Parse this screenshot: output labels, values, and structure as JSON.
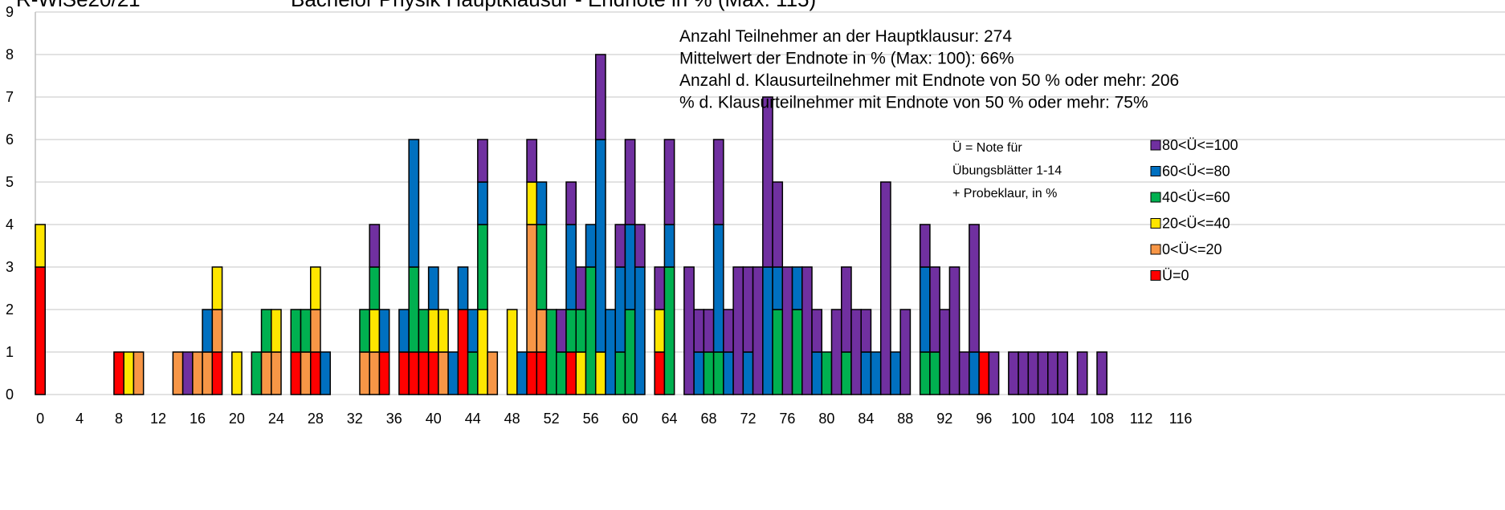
{
  "chart_data": {
    "type": "stacked_bar",
    "title": "Bachelor Physik Hauptklausur - Endnote in % (Max: 115)",
    "subtitle": "R-WiSe20/21",
    "annotations": [
      "Anzahl Teilnehmer an der Hauptklausur: 274",
      "Mittelwert der Endnote in % (Max: 100):  66%",
      "Anzahl d. Klausurteilnehmer mit Endnote von 50 % oder mehr: 206",
      "% d. Klausurteilnehmer mit Endnote von 50 % oder mehr: 75%"
    ],
    "legend_note": [
      "Ü = Note für",
      "Übungsblätter 1-14",
      "+ Probeklaur,  in %"
    ],
    "x": [
      0,
      8,
      9,
      10,
      14,
      15,
      16,
      17,
      18,
      20,
      22,
      23,
      24,
      26,
      27,
      28,
      29,
      33,
      34,
      35,
      37,
      38,
      39,
      40,
      41,
      42,
      43,
      44,
      45,
      46,
      48,
      49,
      50,
      51,
      52,
      53,
      54,
      55,
      56,
      57,
      58,
      59,
      60,
      61,
      63,
      64,
      66,
      67,
      68,
      69,
      70,
      71,
      72,
      73,
      74,
      75,
      76,
      77,
      78,
      79,
      80,
      81,
      82,
      83,
      84,
      85,
      86,
      87,
      88,
      90,
      91,
      92,
      93,
      94,
      95,
      96,
      97,
      99,
      100,
      101,
      102,
      103,
      104,
      106,
      108
    ],
    "series": [
      {
        "name": "Ü=0",
        "color": "#ff0000",
        "values": [
          3,
          1,
          0,
          0,
          0,
          0,
          0,
          0,
          1,
          0,
          0,
          0,
          0,
          1,
          0,
          1,
          0,
          0,
          0,
          1,
          1,
          1,
          1,
          1,
          0,
          0,
          2,
          0,
          0,
          0,
          0,
          0,
          1,
          1,
          0,
          0,
          1,
          0,
          0,
          0,
          0,
          0,
          0,
          0,
          1,
          0,
          0,
          0,
          0,
          0,
          0,
          0,
          0,
          0,
          0,
          0,
          0,
          0,
          0,
          0,
          0,
          0,
          0,
          0,
          0,
          0,
          0,
          0,
          0,
          0,
          0,
          0,
          0,
          0,
          0,
          1,
          0,
          0,
          0,
          0,
          0,
          0,
          0,
          0,
          0
        ]
      },
      {
        "name": "0<Ü<=20",
        "color": "#f79646",
        "values": [
          0,
          0,
          0,
          1,
          1,
          0,
          1,
          1,
          1,
          0,
          0,
          1,
          1,
          0,
          1,
          1,
          0,
          1,
          1,
          0,
          0,
          0,
          0,
          0,
          1,
          0,
          0,
          0,
          0,
          1,
          0,
          0,
          3,
          1,
          0,
          0,
          0,
          0,
          0,
          0,
          0,
          0,
          0,
          0,
          0,
          0,
          0,
          0,
          0,
          0,
          0,
          0,
          0,
          0,
          0,
          0,
          0,
          0,
          0,
          0,
          0,
          0,
          0,
          0,
          0,
          0,
          0,
          0,
          0,
          0,
          0,
          0,
          0,
          0,
          0,
          0,
          0,
          0,
          0,
          0,
          0,
          0,
          0,
          0,
          0
        ]
      },
      {
        "name": "20<Ü<=40",
        "color": "#ffe600",
        "values": [
          1,
          0,
          1,
          0,
          0,
          0,
          0,
          0,
          1,
          1,
          0,
          0,
          1,
          0,
          0,
          1,
          0,
          0,
          1,
          0,
          0,
          0,
          0,
          1,
          1,
          0,
          0,
          0,
          2,
          0,
          2,
          0,
          1,
          0,
          0,
          0,
          0,
          1,
          0,
          1,
          0,
          0,
          0,
          0,
          1,
          0,
          0,
          0,
          0,
          0,
          0,
          0,
          0,
          0,
          0,
          0,
          0,
          0,
          0,
          0,
          0,
          0,
          0,
          0,
          0,
          0,
          0,
          0,
          0,
          0,
          0,
          0,
          0,
          0,
          0,
          0,
          0,
          0,
          0,
          0,
          0,
          0,
          0,
          0,
          0
        ]
      },
      {
        "name": "40<Ü<=60",
        "color": "#00b050",
        "values": [
          0,
          0,
          0,
          0,
          0,
          0,
          0,
          0,
          0,
          0,
          1,
          1,
          0,
          1,
          1,
          0,
          0,
          1,
          1,
          0,
          0,
          2,
          1,
          0,
          0,
          0,
          0,
          1,
          2,
          0,
          0,
          0,
          0,
          2,
          2,
          1,
          1,
          1,
          3,
          0,
          0,
          1,
          2,
          0,
          0,
          3,
          0,
          0,
          1,
          1,
          0,
          0,
          0,
          0,
          0,
          2,
          0,
          2,
          0,
          0,
          1,
          0,
          1,
          0,
          0,
          0,
          0,
          0,
          0,
          1,
          1,
          0,
          0,
          0,
          0,
          0,
          0,
          0,
          0,
          0,
          0,
          0,
          0,
          0,
          0
        ]
      },
      {
        "name": "60<Ü<=80",
        "color": "#0070c0",
        "values": [
          0,
          0,
          0,
          0,
          0,
          0,
          0,
          1,
          0,
          0,
          0,
          0,
          0,
          0,
          0,
          0,
          1,
          0,
          0,
          1,
          1,
          3,
          0,
          1,
          0,
          1,
          1,
          1,
          1,
          0,
          0,
          1,
          0,
          1,
          0,
          0,
          2,
          0,
          1,
          5,
          2,
          2,
          2,
          3,
          0,
          1,
          0,
          1,
          0,
          3,
          1,
          0,
          1,
          0,
          3,
          1,
          0,
          1,
          0,
          1,
          0,
          0,
          0,
          0,
          1,
          1,
          0,
          1,
          0,
          2,
          0,
          0,
          0,
          0,
          1,
          0,
          0,
          0,
          0,
          0,
          0,
          0,
          0,
          0,
          0
        ]
      },
      {
        "name": "80<Ü<=100",
        "color": "#7030a0",
        "values": [
          0,
          0,
          0,
          0,
          0,
          1,
          0,
          0,
          0,
          0,
          0,
          0,
          0,
          0,
          0,
          0,
          0,
          0,
          1,
          0,
          0,
          0,
          0,
          0,
          0,
          0,
          0,
          0,
          1,
          0,
          0,
          0,
          1,
          0,
          0,
          1,
          1,
          1,
          0,
          2,
          0,
          1,
          2,
          1,
          1,
          2,
          3,
          1,
          1,
          2,
          1,
          3,
          2,
          3,
          4,
          2,
          3,
          0,
          3,
          1,
          0,
          2,
          2,
          2,
          1,
          0,
          5,
          0,
          2,
          1,
          2,
          2,
          3,
          1,
          3,
          0,
          1,
          1,
          1,
          1,
          1,
          1,
          1,
          1,
          1
        ]
      }
    ],
    "xlim": [
      -0.5,
      149
    ],
    "xticks": [
      0,
      4,
      8,
      12,
      16,
      20,
      24,
      28,
      32,
      36,
      40,
      44,
      48,
      52,
      56,
      60,
      64,
      68,
      72,
      76,
      80,
      84,
      88,
      92,
      96,
      100,
      104,
      108,
      112,
      116
    ],
    "ylim": [
      0,
      9
    ],
    "yticks": [
      0,
      1,
      2,
      3,
      4,
      5,
      6,
      7,
      8,
      9
    ],
    "grid": true
  }
}
